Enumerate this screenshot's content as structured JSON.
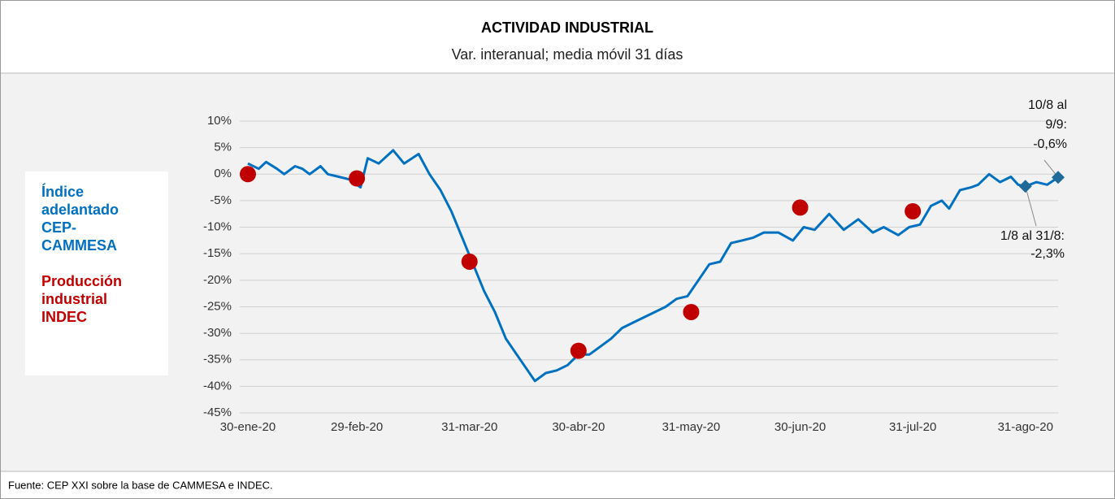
{
  "chart_data": {
    "type": "line",
    "title": "ACTIVIDAD INDUSTRIAL",
    "subtitle": "Var. interanual; media móvil 31 días",
    "source": "Fuente: CEP XXI sobre la base de CAMMESA e INDEC.",
    "xlim": [
      "2020-01-30",
      "2020-09-09"
    ],
    "xticks": [
      {
        "value": "2020-01-30",
        "label": "30-ene-20"
      },
      {
        "value": "2020-02-29",
        "label": "29-feb-20"
      },
      {
        "value": "2020-03-31",
        "label": "31-mar-20"
      },
      {
        "value": "2020-04-30",
        "label": "30-abr-20"
      },
      {
        "value": "2020-05-31",
        "label": "31-may-20"
      },
      {
        "value": "2020-06-30",
        "label": "30-jun-20"
      },
      {
        "value": "2020-07-31",
        "label": "31-jul-20"
      },
      {
        "value": "2020-08-31",
        "label": "31-ago-20"
      }
    ],
    "ylim": [
      -45,
      10
    ],
    "yticks": [
      {
        "value": 10,
        "label": "10%"
      },
      {
        "value": 5,
        "label": "5%"
      },
      {
        "value": 0,
        "label": "0%"
      },
      {
        "value": -5,
        "label": "-5%"
      },
      {
        "value": -10,
        "label": "-10%"
      },
      {
        "value": -15,
        "label": "-15%"
      },
      {
        "value": -20,
        "label": "-20%"
      },
      {
        "value": -25,
        "label": "-25%"
      },
      {
        "value": -30,
        "label": "-30%"
      },
      {
        "value": -35,
        "label": "-35%"
      },
      {
        "value": -40,
        "label": "-40%"
      },
      {
        "value": -45,
        "label": "-45%"
      }
    ],
    "grid": true,
    "series": [
      {
        "name": "Índice adelantado CEP-CAMMESA",
        "color": "#0070c0",
        "marker": "line",
        "x": [
          "2020-01-30",
          "2020-02-02",
          "2020-02-04",
          "2020-02-07",
          "2020-02-09",
          "2020-02-12",
          "2020-02-14",
          "2020-02-16",
          "2020-02-19",
          "2020-02-21",
          "2020-02-24",
          "2020-02-27",
          "2020-03-01",
          "2020-03-03",
          "2020-03-06",
          "2020-03-10",
          "2020-03-13",
          "2020-03-17",
          "2020-03-20",
          "2020-03-23",
          "2020-03-26",
          "2020-03-29",
          "2020-04-01",
          "2020-04-04",
          "2020-04-07",
          "2020-04-10",
          "2020-04-13",
          "2020-04-16",
          "2020-04-18",
          "2020-04-21",
          "2020-04-24",
          "2020-04-27",
          "2020-04-30",
          "2020-05-03",
          "2020-05-06",
          "2020-05-09",
          "2020-05-12",
          "2020-05-15",
          "2020-05-18",
          "2020-05-21",
          "2020-05-24",
          "2020-05-27",
          "2020-05-30",
          "2020-06-02",
          "2020-06-05",
          "2020-06-08",
          "2020-06-11",
          "2020-06-14",
          "2020-06-17",
          "2020-06-20",
          "2020-06-24",
          "2020-06-28",
          "2020-07-01",
          "2020-07-04",
          "2020-07-08",
          "2020-07-12",
          "2020-07-16",
          "2020-07-20",
          "2020-07-23",
          "2020-07-27",
          "2020-07-30",
          "2020-08-02",
          "2020-08-05",
          "2020-08-08",
          "2020-08-10",
          "2020-08-13",
          "2020-08-16",
          "2020-08-18",
          "2020-08-21",
          "2020-08-24",
          "2020-08-27",
          "2020-08-29",
          "2020-08-31",
          "2020-09-03",
          "2020-09-06",
          "2020-09-09"
        ],
        "values": [
          2,
          1,
          2.3,
          1,
          0,
          1.5,
          1,
          0,
          1.5,
          0,
          -0.5,
          -1,
          -2.5,
          3,
          2,
          4.5,
          2,
          3.8,
          0,
          -3,
          -7,
          -12,
          -17,
          -22,
          -26,
          -31,
          -34,
          -37,
          -39,
          -37.5,
          -37,
          -36,
          -34,
          -34,
          -32.5,
          -31,
          -29,
          -28,
          -27,
          -26,
          -25,
          -23.5,
          -23,
          -20,
          -17,
          -16.5,
          -13,
          -12.5,
          -12,
          -11,
          -11,
          -12.5,
          -10,
          -10.5,
          -7.5,
          -10.5,
          -8.5,
          -11,
          -10,
          -11.5,
          -10,
          -9.5,
          -6,
          -5,
          -6.5,
          -3,
          -2.5,
          -2,
          0,
          -1.5,
          -0.5,
          -2,
          -2.3,
          -1.5,
          -2,
          -0.6
        ]
      },
      {
        "name": "Producción industrial INDEC",
        "color": "#c00000",
        "marker": "circle",
        "x": [
          "2020-01-30",
          "2020-02-29",
          "2020-03-31",
          "2020-04-30",
          "2020-05-31",
          "2020-06-30",
          "2020-07-31"
        ],
        "values": [
          0,
          -0.8,
          -16.5,
          -33.3,
          -26,
          -6.3,
          -7
        ]
      }
    ],
    "annotations": [
      {
        "x": "2020-09-09",
        "value": -0.6,
        "color": "#1f6a99",
        "text": [
          "10/8 al",
          "9/9:",
          "-0,6%"
        ]
      },
      {
        "x": "2020-08-31",
        "value": -2.3,
        "color": "#1f6a99",
        "text": [
          "1/8 al 31/8:",
          "-2,3%"
        ]
      }
    ]
  }
}
